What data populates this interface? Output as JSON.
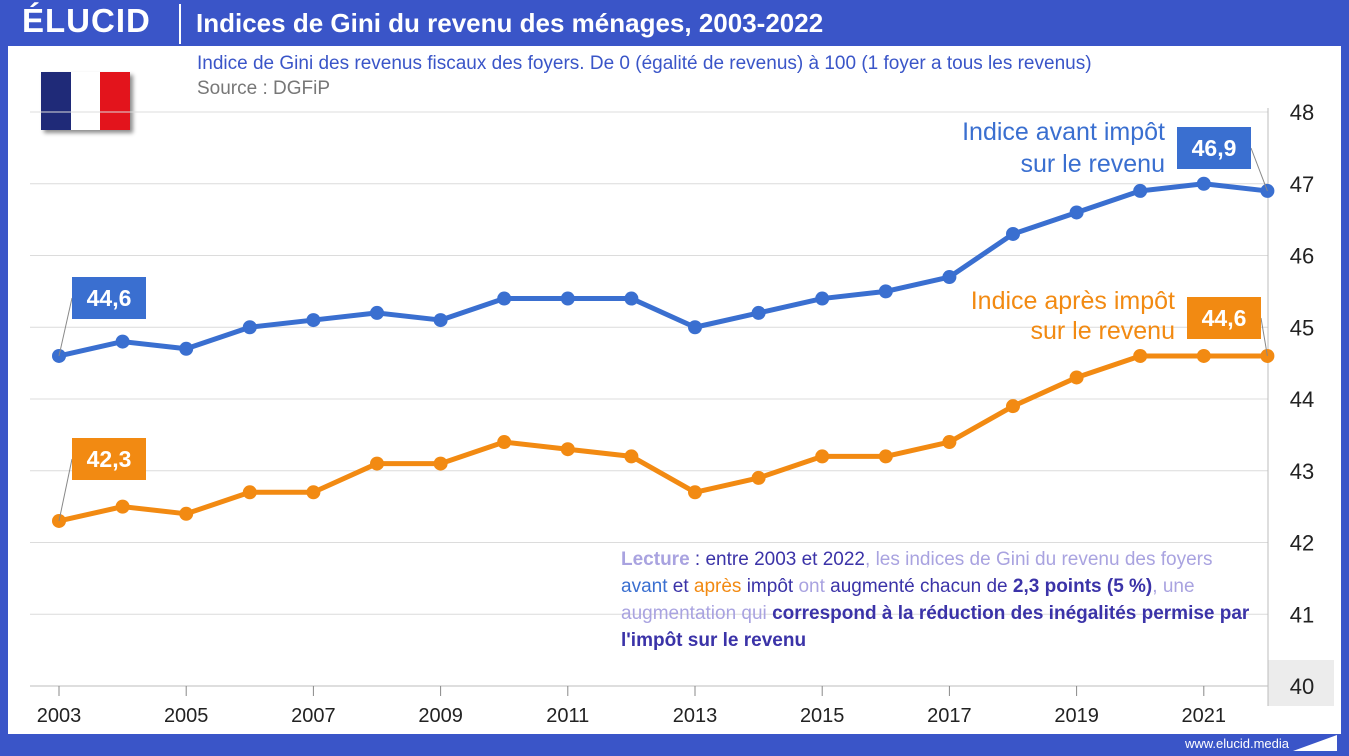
{
  "header": {
    "brand": "ÉLUCID",
    "title": "Indices de Gini du revenu des ménages, 2003-2022"
  },
  "subtitle": "Indice de Gini des revenus fiscaux des foyers. De 0 (égalité de revenus) à 100 (1 foyer a tous les revenus)",
  "source": "Source : DGFiP",
  "flag": {
    "colors": [
      "#1f2a78",
      "#ffffff",
      "#e3141c"
    ]
  },
  "colors": {
    "brand": "#3a55c8",
    "before_tax": "#3a6fd0",
    "after_tax": "#f28a12",
    "reading_light": "#a9a3e0",
    "reading_dark": "#3b33a8"
  },
  "chart_data": {
    "type": "line",
    "x": [
      2003,
      2004,
      2005,
      2006,
      2007,
      2008,
      2009,
      2010,
      2011,
      2012,
      2013,
      2014,
      2015,
      2016,
      2017,
      2018,
      2019,
      2020,
      2021,
      2022
    ],
    "xticks": [
      "2003",
      "2005",
      "2007",
      "2009",
      "2011",
      "2013",
      "2015",
      "2017",
      "2019",
      "2021"
    ],
    "yticks": [
      "40",
      "41",
      "42",
      "43",
      "44",
      "45",
      "46",
      "47",
      "48"
    ],
    "ylim": [
      40,
      48
    ],
    "grid": true,
    "series": [
      {
        "name": "Indice avant impôt sur le revenu",
        "name_lines": [
          "Indice avant impôt",
          "sur le revenu"
        ],
        "color": "#3a6fd0",
        "values": [
          44.6,
          44.8,
          44.7,
          45.0,
          45.1,
          45.2,
          45.1,
          45.4,
          45.4,
          45.4,
          45.0,
          45.2,
          45.4,
          45.5,
          45.7,
          46.3,
          46.6,
          46.9,
          47.0,
          46.9
        ],
        "start_label": "44,6",
        "end_label": "46,9"
      },
      {
        "name": "Indice après impôt sur le revenu",
        "name_lines": [
          "Indice après impôt",
          "sur le revenu"
        ],
        "color": "#f28a12",
        "values": [
          42.3,
          42.5,
          42.4,
          42.7,
          42.7,
          43.1,
          43.1,
          43.4,
          43.3,
          43.2,
          42.7,
          42.9,
          43.2,
          43.2,
          43.4,
          43.9,
          44.3,
          44.6,
          44.6,
          44.6
        ],
        "start_label": "42,3",
        "end_label": "44,6"
      }
    ]
  },
  "reading": {
    "p1": "Lecture",
    "p2": " : entre 2003 et 2022",
    "p3": ", les indices de Gini du revenu des foyers ",
    "p4": "avant",
    "p5": " et ",
    "p6": "après",
    "p7": " impôt ",
    "p8": "ont",
    "p9": " augmenté chacun de ",
    "p10": "2,3 points (5 %)",
    "p11": ", une augmentation qui ",
    "p12": "correspond à la réduction des inégalités permise par l'impôt sur le revenu"
  },
  "footer": {
    "url": "www.elucid.media"
  }
}
